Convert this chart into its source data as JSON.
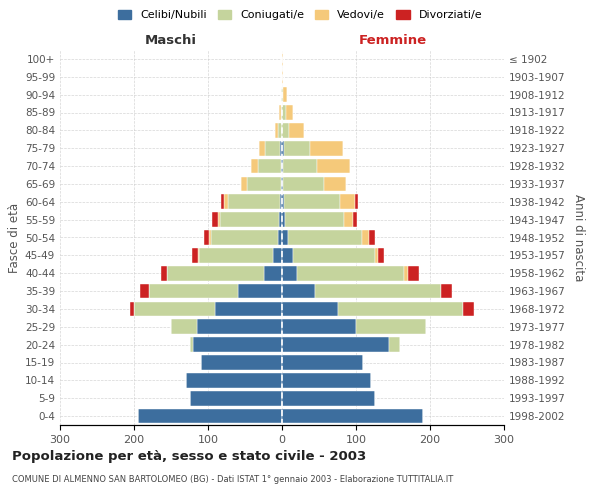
{
  "age_groups": [
    "0-4",
    "5-9",
    "10-14",
    "15-19",
    "20-24",
    "25-29",
    "30-34",
    "35-39",
    "40-44",
    "45-49",
    "50-54",
    "55-59",
    "60-64",
    "65-69",
    "70-74",
    "75-79",
    "80-84",
    "85-89",
    "90-94",
    "95-99",
    "100+"
  ],
  "birth_years": [
    "1998-2002",
    "1993-1997",
    "1988-1992",
    "1983-1987",
    "1978-1982",
    "1973-1977",
    "1968-1972",
    "1963-1967",
    "1958-1962",
    "1953-1957",
    "1948-1952",
    "1943-1947",
    "1938-1942",
    "1933-1937",
    "1928-1932",
    "1923-1927",
    "1918-1922",
    "1913-1917",
    "1908-1912",
    "1903-1907",
    "≤ 1902"
  ],
  "male": {
    "celibi": [
      195,
      125,
      130,
      110,
      120,
      115,
      90,
      60,
      25,
      12,
      6,
      4,
      3,
      2,
      2,
      3,
      0,
      0,
      0,
      0,
      0
    ],
    "coniugati": [
      0,
      0,
      0,
      0,
      5,
      35,
      110,
      120,
      130,
      100,
      90,
      80,
      70,
      45,
      30,
      20,
      5,
      2,
      1,
      0,
      0
    ],
    "vedovi": [
      0,
      0,
      0,
      0,
      0,
      0,
      0,
      0,
      1,
      1,
      2,
      3,
      5,
      8,
      10,
      8,
      5,
      2,
      0,
      0,
      0
    ],
    "divorziati": [
      0,
      0,
      0,
      0,
      0,
      0,
      5,
      12,
      8,
      8,
      8,
      8,
      5,
      0,
      0,
      0,
      0,
      0,
      0,
      0,
      0
    ]
  },
  "female": {
    "nubili": [
      190,
      125,
      120,
      110,
      145,
      100,
      75,
      45,
      20,
      15,
      8,
      4,
      3,
      2,
      2,
      3,
      0,
      0,
      0,
      0,
      0
    ],
    "coniugate": [
      0,
      0,
      0,
      0,
      15,
      95,
      170,
      170,
      145,
      110,
      100,
      80,
      75,
      55,
      45,
      35,
      10,
      5,
      2,
      0,
      0
    ],
    "vedove": [
      0,
      0,
      0,
      0,
      0,
      0,
      0,
      0,
      5,
      5,
      10,
      12,
      20,
      30,
      45,
      45,
      20,
      10,
      5,
      2,
      1
    ],
    "divorziate": [
      0,
      0,
      0,
      0,
      0,
      0,
      15,
      15,
      15,
      8,
      8,
      5,
      5,
      0,
      0,
      0,
      0,
      0,
      0,
      0,
      0
    ]
  },
  "colors": {
    "celibi": "#3d6e9e",
    "coniugati": "#c5d49d",
    "vedovi": "#f5c97a",
    "divorziati": "#cc2222"
  },
  "xlim": 300,
  "title": "Popolazione per età, sesso e stato civile - 2003",
  "subtitle": "COMUNE DI ALMENNO SAN BARTOLOMEO (BG) - Dati ISTAT 1° gennaio 2003 - Elaborazione TUTTITALIA.IT",
  "ylabel_left": "Fasce di età",
  "ylabel_right": "Anni di nascita",
  "xlabel_left": "Maschi",
  "xlabel_right": "Femmine",
  "legend_labels": [
    "Celibi/Nubili",
    "Coniugati/e",
    "Vedovi/e",
    "Divorziati/e"
  ],
  "background_color": "#ffffff",
  "grid_color": "#cccccc"
}
